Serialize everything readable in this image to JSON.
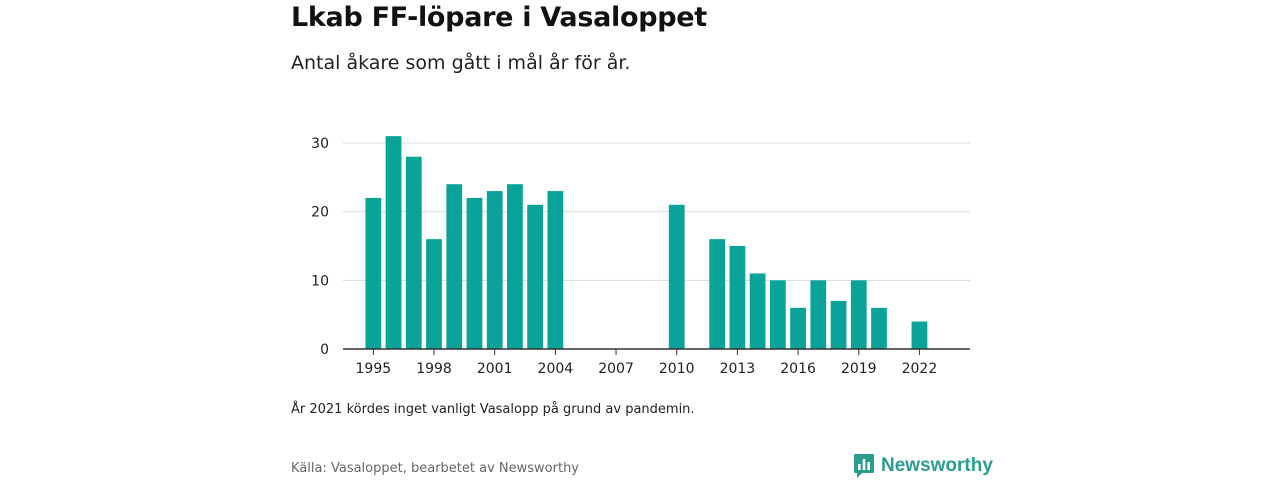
{
  "title": "Lkab FF-löpare i Vasaloppet",
  "subtitle": "Antal åkare som gått i mål år för år.",
  "note": "År 2021 kördes inget vanligt Vasalopp på grund av pandemin.",
  "source": "Källa: Vasaloppet, bearbetet av Newsworthy",
  "brand": {
    "name": "Newsworthy",
    "logo_icon": "newsworthy-bar-chart-icon"
  },
  "colors": {
    "bar": "#0aa39a",
    "grid": "#d9d9d9",
    "axis": "#333333",
    "brand": "#2a9d8f"
  },
  "chart_data": {
    "type": "bar",
    "title": "",
    "xlabel": "",
    "ylabel": "",
    "ylim": [
      0,
      30
    ],
    "yticks": [
      0,
      10,
      20,
      30
    ],
    "xticks": [
      1995,
      1998,
      2001,
      2004,
      2007,
      2010,
      2013,
      2016,
      2019,
      2022
    ],
    "xlim": [
      1994,
      2024
    ],
    "grid": true,
    "legend": "none",
    "series": [
      {
        "x": [
          1995,
          1996,
          1997,
          1998,
          1999,
          2000,
          2001,
          2002,
          2003,
          2004,
          2010,
          2012,
          2013,
          2014,
          2015,
          2016,
          2017,
          2018,
          2019,
          2020,
          2022
        ],
        "values": [
          22,
          31,
          28,
          16,
          24,
          22,
          23,
          24,
          21,
          23,
          21,
          16,
          15,
          11,
          10,
          6,
          10,
          7,
          10,
          6,
          4
        ]
      }
    ]
  }
}
